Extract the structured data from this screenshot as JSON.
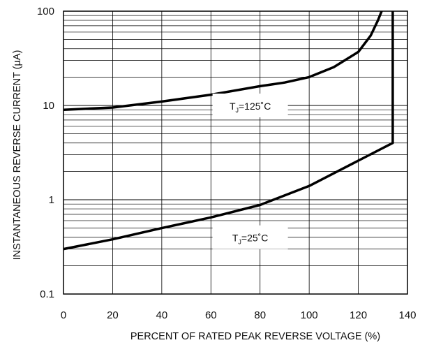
{
  "chart_data": {
    "type": "line",
    "title": "",
    "xlabel": "PERCENT OF RATED PEAK REVERSE VOLTAGE (%)",
    "ylabel": "INSTANTANEOUS REVERSE CURRENT (µA)",
    "xlim": [
      0,
      140
    ],
    "ylim": [
      0.1,
      100
    ],
    "yscale": "log",
    "grid": true,
    "x_ticks": [
      "0",
      "20",
      "40",
      "60",
      "80",
      "100",
      "120",
      "140"
    ],
    "y_ticks": [
      "0.1",
      "1",
      "10",
      "100"
    ],
    "series": [
      {
        "points": [
          [
            0,
            9.0
          ],
          [
            20,
            9.5
          ],
          [
            40,
            11.0
          ],
          [
            60,
            13.0
          ],
          [
            80,
            16.0
          ],
          [
            90,
            17.5
          ],
          [
            100,
            20.0
          ],
          [
            110,
            25.5
          ],
          [
            120,
            37.0
          ],
          [
            125,
            55.0
          ],
          [
            128,
            80.0
          ],
          [
            129.5,
            100.0
          ]
        ]
      },
      {
        "points": [
          [
            0,
            0.3
          ],
          [
            20,
            0.38
          ],
          [
            40,
            0.5
          ],
          [
            60,
            0.65
          ],
          [
            80,
            0.88
          ],
          [
            100,
            1.4
          ],
          [
            120,
            2.6
          ],
          [
            134,
            4.0
          ],
          [
            134,
            100.0
          ]
        ]
      }
    ],
    "annotations": [
      {
        "prefix": "T",
        "sub": "J",
        "suffix": "=125˚C",
        "x": 76,
        "y": 10
      },
      {
        "prefix": "T",
        "sub": "J",
        "suffix": "=25˚C",
        "x": 76,
        "y": 0.4
      }
    ],
    "line_color": "#000000",
    "grid_color": "#000000"
  }
}
